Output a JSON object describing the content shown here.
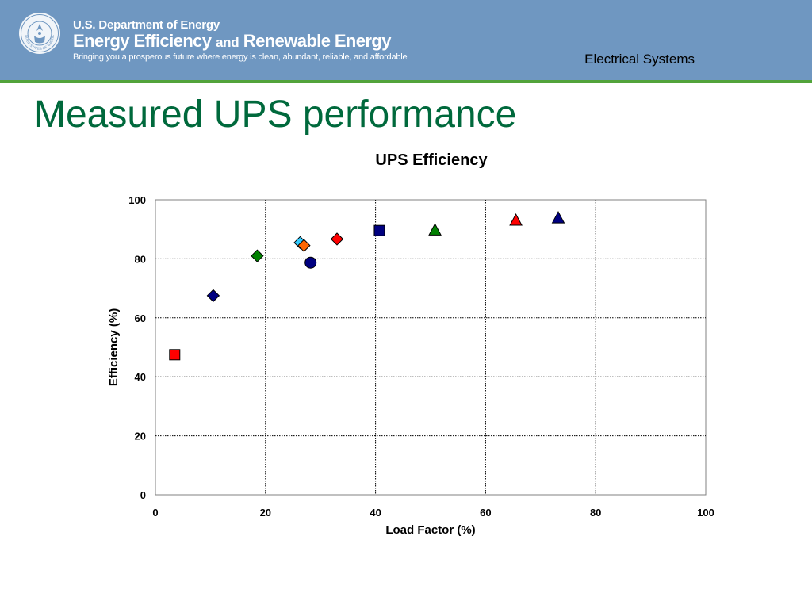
{
  "header": {
    "agency": "U.S. Department of Energy",
    "program_part1": "Energy Efficiency",
    "program_and": "and",
    "program_part2": "Renewable Energy",
    "tagline": "Bringing you a prosperous future where energy is clean, abundant, reliable, and affordable",
    "section": "Electrical Systems",
    "seal_icon": "doe-seal-icon",
    "seal_text": "UNITED STATES OF AMERICA",
    "colors": {
      "banner": "#6f97c1",
      "rule": "#52a33b",
      "title": "#00693c"
    }
  },
  "slide": {
    "title": "Measured UPS performance"
  },
  "chart_data": {
    "type": "scatter",
    "title": "UPS Efficiency",
    "xlabel": "Load Factor (%)",
    "ylabel": "Efficiency (%)",
    "xlim": [
      0,
      100
    ],
    "ylim": [
      0,
      100
    ],
    "xticks": [
      0,
      20,
      40,
      60,
      80,
      100
    ],
    "yticks": [
      0,
      20,
      40,
      60,
      80,
      100
    ],
    "grid": true,
    "points": [
      {
        "x": 3.5,
        "y": 47.5,
        "marker": "square",
        "color": "#ff0000"
      },
      {
        "x": 10.5,
        "y": 67.5,
        "marker": "diamond",
        "color": "#000080"
      },
      {
        "x": 18.5,
        "y": 81.0,
        "marker": "diamond",
        "color": "#008000"
      },
      {
        "x": 26.3,
        "y": 85.5,
        "marker": "diamond",
        "color": "#33ccff"
      },
      {
        "x": 27.0,
        "y": 84.5,
        "marker": "diamond",
        "color": "#ff6600"
      },
      {
        "x": 28.2,
        "y": 78.7,
        "marker": "circle",
        "color": "#000080"
      },
      {
        "x": 33.0,
        "y": 86.7,
        "marker": "diamond",
        "color": "#ff0000"
      },
      {
        "x": 40.7,
        "y": 89.6,
        "marker": "square",
        "color": "#000080"
      },
      {
        "x": 50.8,
        "y": 89.7,
        "marker": "triangle",
        "color": "#008000"
      },
      {
        "x": 65.5,
        "y": 93.0,
        "marker": "triangle",
        "color": "#ff0000"
      },
      {
        "x": 73.2,
        "y": 93.8,
        "marker": "triangle",
        "color": "#000080"
      }
    ]
  }
}
